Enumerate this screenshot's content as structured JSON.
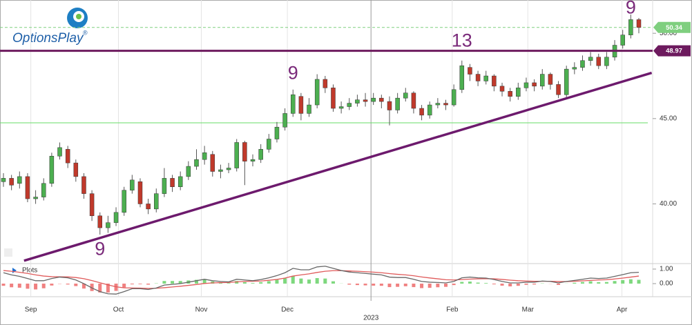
{
  "brand": "OptionsPlay",
  "brand_mark": "®",
  "legend_label": "Plots",
  "chart_data": [
    {
      "type": "candlestick",
      "up_color": "#4caf50",
      "down_color": "#c0392b",
      "wick_color": "#555555",
      "open": [
        41.3,
        41.5,
        41.2,
        41.6,
        40.3,
        40.4,
        41.2,
        42.8,
        43.2,
        42.4,
        41.6,
        40.6,
        39.3,
        38.6,
        38.9,
        39.5,
        40.8,
        41.3,
        40.0,
        39.7,
        40.6,
        41.5,
        41.0,
        41.6,
        42.2,
        42.6,
        42.9,
        41.9,
        42.0,
        42.1,
        43.6,
        42.5,
        42.6,
        43.2,
        43.8,
        44.5,
        45.3,
        46.3,
        45.3,
        45.8,
        47.3,
        46.8,
        45.6,
        45.7,
        45.9,
        46.1,
        46.0,
        46.2,
        46.0,
        45.5,
        46.2,
        46.5,
        45.6,
        45.2,
        45.8,
        45.9,
        45.8,
        46.7,
        48.0,
        47.6,
        47.2,
        47.5,
        46.9,
        46.6,
        46.3,
        46.8,
        47.1,
        46.9,
        47.6,
        47.0,
        46.4,
        47.9,
        48.0,
        48.4,
        48.6,
        48.1,
        48.6,
        49.3,
        49.9,
        50.8
      ],
      "high": [
        41.8,
        41.7,
        41.9,
        41.8,
        40.8,
        41.5,
        43.0,
        43.6,
        43.4,
        42.6,
        41.8,
        40.8,
        39.5,
        39.3,
        39.8,
        41.0,
        41.7,
        41.5,
        40.3,
        40.9,
        42.1,
        41.7,
        41.9,
        42.5,
        43.2,
        43.4,
        43.1,
        42.3,
        42.4,
        43.8,
        43.7,
        42.9,
        43.5,
        44.1,
        44.8,
        45.6,
        46.7,
        46.5,
        46.2,
        47.6,
        47.5,
        47.0,
        46.0,
        46.2,
        46.4,
        46.5,
        46.5,
        46.4,
        46.3,
        46.5,
        46.8,
        46.6,
        45.8,
        46.0,
        46.2,
        46.1,
        47.0,
        48.4,
        48.2,
        47.8,
        47.8,
        47.6,
        47.1,
        46.8,
        47.1,
        47.4,
        47.3,
        47.9,
        47.7,
        47.2,
        48.1,
        48.3,
        48.7,
        48.9,
        48.8,
        48.9,
        49.6,
        50.2,
        51.1,
        50.9
      ],
      "low": [
        41.0,
        40.8,
        40.9,
        40.1,
        40.0,
        40.2,
        41.0,
        42.6,
        42.1,
        41.3,
        40.3,
        39.0,
        38.2,
        38.3,
        38.7,
        39.3,
        40.6,
        39.8,
        39.4,
        39.5,
        40.4,
        40.7,
        40.8,
        41.4,
        42.0,
        42.3,
        41.6,
        41.5,
        41.8,
        41.9,
        41.1,
        42.2,
        42.4,
        43.0,
        43.6,
        44.3,
        45.1,
        44.9,
        45.1,
        45.6,
        46.5,
        45.4,
        45.3,
        45.5,
        45.7,
        45.7,
        45.8,
        45.6,
        44.6,
        45.3,
        46.0,
        45.3,
        44.9,
        45.0,
        45.6,
        45.5,
        45.7,
        46.5,
        47.2,
        46.9,
        47.0,
        46.6,
        46.3,
        46.0,
        46.1,
        46.6,
        46.6,
        46.7,
        46.7,
        46.2,
        46.2,
        47.6,
        47.8,
        48.1,
        47.9,
        47.9,
        48.4,
        49.1,
        49.7,
        50.0
      ],
      "close": [
        41.5,
        41.1,
        41.6,
        40.3,
        40.4,
        41.2,
        42.8,
        43.3,
        42.4,
        41.6,
        40.6,
        39.3,
        38.6,
        38.9,
        39.5,
        40.8,
        41.4,
        40.0,
        39.7,
        40.6,
        41.5,
        41.0,
        41.6,
        42.2,
        42.6,
        43.0,
        41.9,
        42.0,
        42.1,
        43.6,
        42.5,
        42.6,
        43.2,
        43.8,
        44.5,
        45.3,
        46.4,
        45.3,
        45.8,
        47.3,
        46.8,
        45.6,
        45.7,
        45.9,
        46.1,
        46.0,
        46.2,
        46.0,
        45.5,
        46.2,
        46.5,
        45.6,
        45.2,
        45.8,
        45.9,
        45.8,
        46.7,
        48.1,
        47.6,
        47.2,
        47.5,
        46.9,
        46.6,
        46.3,
        46.8,
        47.1,
        46.9,
        47.6,
        47.0,
        46.4,
        47.9,
        48.0,
        48.4,
        48.6,
        48.1,
        48.6,
        49.3,
        49.9,
        50.8,
        50.34
      ],
      "ylim": [
        36.5,
        51.95
      ],
      "yticks": [
        {
          "value": 40,
          "label": "40.00"
        },
        {
          "value": 45,
          "label": "45.00"
        },
        {
          "value": 50,
          "label": "50.00"
        }
      ],
      "xticks": [
        {
          "value": 3.4,
          "label": "Sep"
        },
        {
          "value": 14.3,
          "label": "Oct"
        },
        {
          "value": 24.6,
          "label": "Nov"
        },
        {
          "value": 35.3,
          "label": "Dec"
        },
        {
          "value": 45.7,
          "label": "2023"
        },
        {
          "value": 55.8,
          "label": "Feb"
        },
        {
          "value": 65.2,
          "label": "Mar"
        },
        {
          "value": 76.9,
          "label": "Apr"
        }
      ],
      "last_price": {
        "value": 50.34,
        "label": "50.34",
        "color": "#7fcf7f"
      },
      "level": {
        "value": 48.97,
        "label": "48.97",
        "color": "#6d1a5e"
      },
      "support_level": 44.75,
      "support_color": "#66dd66",
      "trendline": {
        "x": [
          2.56,
          80.6
        ],
        "y": [
          36.67,
          47.68
        ],
        "color": "#6d1a6d"
      },
      "annotations": [
        "9",
        "9",
        "13",
        "9"
      ],
      "annotation_color": "#7a2a7a"
    },
    {
      "type": "macd",
      "macd_color": "#666666",
      "signal_color": "#e05a5a",
      "hist_up_color": "#7ed87e",
      "hist_down_color": "#f08080",
      "macd": [
        0.75,
        0.6,
        0.5,
        0.35,
        0.2,
        0.2,
        0.35,
        0.45,
        0.4,
        0.25,
        0.0,
        -0.3,
        -0.55,
        -0.7,
        -0.72,
        -0.55,
        -0.35,
        -0.35,
        -0.4,
        -0.3,
        -0.1,
        -0.05,
        0.0,
        0.1,
        0.2,
        0.3,
        0.2,
        0.15,
        0.12,
        0.3,
        0.25,
        0.2,
        0.28,
        0.4,
        0.55,
        0.75,
        1.05,
        0.95,
        0.95,
        1.15,
        1.2,
        1.05,
        0.9,
        0.8,
        0.75,
        0.7,
        0.65,
        0.6,
        0.45,
        0.42,
        0.42,
        0.3,
        0.15,
        0.1,
        0.08,
        0.05,
        0.15,
        0.4,
        0.45,
        0.4,
        0.38,
        0.28,
        0.15,
        0.05,
        0.05,
        0.1,
        0.1,
        0.18,
        0.15,
        0.05,
        0.15,
        0.22,
        0.3,
        0.38,
        0.35,
        0.38,
        0.5,
        0.62,
        0.75,
        0.78
      ],
      "signal": [
        0.9,
        0.85,
        0.78,
        0.7,
        0.6,
        0.52,
        0.48,
        0.47,
        0.46,
        0.42,
        0.34,
        0.21,
        0.06,
        -0.09,
        -0.22,
        -0.29,
        -0.3,
        -0.31,
        -0.33,
        -0.32,
        -0.28,
        -0.23,
        -0.18,
        -0.12,
        -0.06,
        0.01,
        0.05,
        0.07,
        0.08,
        0.12,
        0.15,
        0.16,
        0.18,
        0.23,
        0.29,
        0.38,
        0.52,
        0.6,
        0.67,
        0.77,
        0.85,
        0.89,
        0.89,
        0.87,
        0.85,
        0.82,
        0.79,
        0.75,
        0.69,
        0.64,
        0.6,
        0.54,
        0.46,
        0.39,
        0.33,
        0.27,
        0.25,
        0.28,
        0.31,
        0.33,
        0.34,
        0.33,
        0.29,
        0.24,
        0.2,
        0.18,
        0.16,
        0.16,
        0.16,
        0.14,
        0.14,
        0.16,
        0.19,
        0.22,
        0.25,
        0.27,
        0.32,
        0.38,
        0.45,
        0.52
      ],
      "histogram": [
        -0.15,
        -0.25,
        -0.28,
        -0.35,
        -0.4,
        -0.32,
        -0.13,
        -0.02,
        -0.06,
        -0.17,
        -0.34,
        -0.51,
        -0.61,
        -0.61,
        -0.5,
        -0.26,
        -0.05,
        -0.04,
        -0.07,
        0.02,
        0.18,
        0.18,
        0.18,
        0.22,
        0.26,
        0.29,
        0.15,
        0.08,
        0.04,
        0.18,
        0.1,
        0.04,
        0.1,
        0.17,
        0.26,
        0.37,
        0.53,
        0.35,
        0.28,
        0.38,
        0.35,
        0.16,
        0.01,
        -0.07,
        -0.1,
        -0.12,
        -0.14,
        -0.15,
        -0.24,
        -0.22,
        -0.18,
        -0.24,
        -0.31,
        -0.29,
        -0.25,
        -0.22,
        -0.1,
        0.12,
        0.14,
        0.07,
        0.04,
        -0.05,
        -0.14,
        -0.19,
        -0.15,
        -0.08,
        -0.06,
        0.02,
        -0.01,
        -0.09,
        0.01,
        0.06,
        0.11,
        0.16,
        0.1,
        0.11,
        0.18,
        0.24,
        0.3,
        0.26
      ],
      "ylim": [
        -0.9,
        1.33
      ],
      "yticks": [
        {
          "value": 1,
          "label": "1.00"
        },
        {
          "value": 0,
          "label": "0.00"
        }
      ]
    }
  ]
}
